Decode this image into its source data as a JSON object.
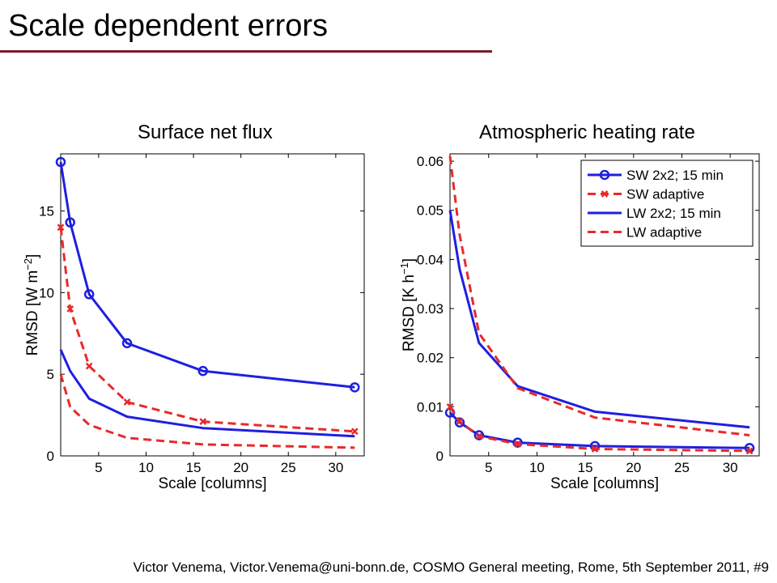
{
  "slide": {
    "title": "Scale dependent errors",
    "footer": "Victor Venema, Victor.Venema@uni-bonn.de, COSMO General meeting, Rome, 5th September 2011, #9"
  },
  "colors": {
    "blue": "#1f1fe0",
    "red": "#e82a2a",
    "title_rule": "#7a1f2b"
  },
  "chart_data": [
    {
      "type": "line",
      "title": "Surface net flux",
      "xlabel": "Scale [columns]",
      "ylabel_base": "RMSD [W m",
      "ylabel_sup": "−2",
      "ylabel_end": "]",
      "xlim": [
        1,
        33
      ],
      "ylim": [
        0,
        18.5
      ],
      "xticks": [
        5,
        10,
        15,
        20,
        25,
        30
      ],
      "yticks": [
        0,
        5,
        10,
        15
      ],
      "series": [
        {
          "x": [
            1,
            2,
            4,
            8,
            16,
            32
          ],
          "y": [
            18.0,
            14.3,
            9.9,
            6.9,
            5.2,
            4.2
          ],
          "color": "#1f1fe0",
          "dash": "solid",
          "marker": "circle"
        },
        {
          "x": [
            1,
            2,
            4,
            8,
            16,
            32
          ],
          "y": [
            14.0,
            9.0,
            5.5,
            3.3,
            2.1,
            1.5
          ],
          "color": "#e82a2a",
          "dash": "dashed",
          "marker": "x"
        },
        {
          "x": [
            1,
            2,
            4,
            8,
            16,
            32
          ],
          "y": [
            6.5,
            5.2,
            3.5,
            2.4,
            1.7,
            1.2
          ],
          "color": "#1f1fe0",
          "dash": "solid",
          "marker": "none"
        },
        {
          "x": [
            1,
            2,
            4,
            8,
            16,
            32
          ],
          "y": [
            5.0,
            3.0,
            1.9,
            1.1,
            0.7,
            0.5
          ],
          "color": "#e82a2a",
          "dash": "dashed",
          "marker": "none"
        }
      ]
    },
    {
      "type": "line",
      "title": "Atmospheric heating rate",
      "xlabel": "Scale [columns]",
      "ylabel_base": "RMSD [K h",
      "ylabel_sup": "−1",
      "ylabel_end": "]",
      "xlim": [
        1,
        33
      ],
      "ylim": [
        0,
        0.0615
      ],
      "xticks": [
        5,
        10,
        15,
        20,
        25,
        30
      ],
      "yticks": [
        0,
        0.01,
        0.02,
        0.03,
        0.04,
        0.05,
        0.06
      ],
      "ytick_labels": [
        "0",
        "0.01",
        "0.02",
        "0.03",
        "0.04",
        "0.05",
        "0.06"
      ],
      "legend_position": "top-right",
      "series": [
        {
          "name": "SW 2x2; 15 min",
          "x": [
            1,
            2,
            4,
            8,
            16,
            32
          ],
          "y": [
            0.0088,
            0.0068,
            0.0042,
            0.0027,
            0.002,
            0.0016
          ],
          "color": "#1f1fe0",
          "dash": "solid",
          "marker": "circle"
        },
        {
          "name": "SW adaptive",
          "x": [
            1,
            2,
            4,
            8,
            16,
            32
          ],
          "y": [
            0.01,
            0.007,
            0.004,
            0.0024,
            0.0014,
            0.001
          ],
          "color": "#e82a2a",
          "dash": "dashed",
          "marker": "x"
        },
        {
          "name": "LW 2x2; 15 min",
          "x": [
            1,
            2,
            4,
            8,
            16,
            32
          ],
          "y": [
            0.05,
            0.038,
            0.023,
            0.0142,
            0.009,
            0.0058
          ],
          "color": "#1f1fe0",
          "dash": "solid",
          "marker": "none"
        },
        {
          "name": "LW adaptive",
          "x": [
            1,
            2,
            4,
            8,
            16,
            32
          ],
          "y": [
            0.061,
            0.045,
            0.025,
            0.0138,
            0.0078,
            0.0042
          ],
          "color": "#e82a2a",
          "dash": "dashed",
          "marker": "none"
        }
      ]
    }
  ]
}
